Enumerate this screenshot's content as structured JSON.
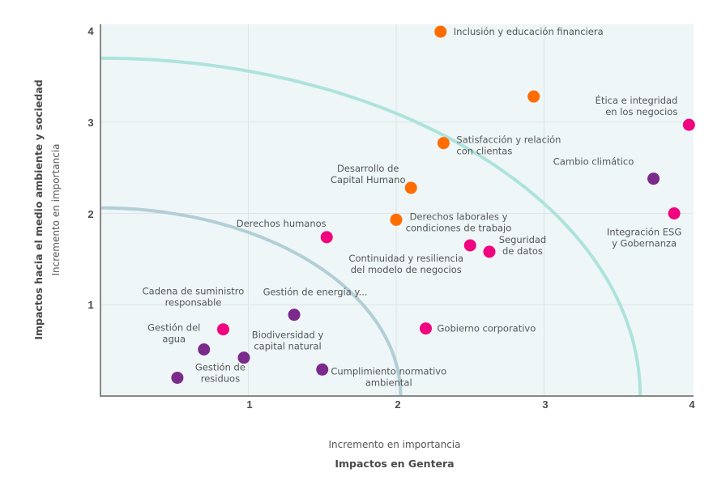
{
  "chart_data": {
    "type": "scatter",
    "title": "",
    "xlabel": "Impactos en Gentera",
    "xlabel_sub": "Incremento en importancia",
    "ylabel": "Impactos hacia el medio ambiente y sociedad",
    "ylabel_sub": "Incremento en importancia",
    "xlim": [
      0,
      4
    ],
    "ylim": [
      0,
      4
    ],
    "xticks": [
      "1",
      "2",
      "3",
      "4"
    ],
    "yticks": [
      "1",
      "2",
      "3",
      "4"
    ],
    "grid": true,
    "legend": "none",
    "colors": {
      "orange": "#ff6d00",
      "pink": "#f0047f",
      "purple": "#7b2a8c",
      "plot_bg": "#eef6f8",
      "grid": "#dde3e6",
      "axis": "#8a8886",
      "outer_curve": "#ade3db",
      "inner_curve": "#b2ced6"
    },
    "threshold_curves": [
      {
        "name": "outer",
        "radius_x": 3.65,
        "radius_y": 3.7,
        "color": "#ade3db"
      },
      {
        "name": "inner",
        "radius_x": 2.03,
        "radius_y": 2.06,
        "color": "#b2ced6"
      }
    ],
    "points": [
      {
        "label": "Inclusión y educación financiera",
        "x": 2.3,
        "y": 3.99,
        "group": "orange"
      },
      {
        "label": "",
        "x": 2.93,
        "y": 3.28,
        "group": "orange"
      },
      {
        "label": "Ética e integridad\nen los negocios",
        "x": 3.98,
        "y": 2.97,
        "group": "pink"
      },
      {
        "label": "Satisfacción y relación\ncon clientas",
        "x": 2.32,
        "y": 2.77,
        "group": "orange"
      },
      {
        "label": "Cambio climático",
        "x": 3.74,
        "y": 2.38,
        "group": "purple"
      },
      {
        "label": "Desarrollo de\nCapital Humano",
        "x": 2.1,
        "y": 2.28,
        "group": "orange"
      },
      {
        "label": "Integración ESG\ny Gobernanza",
        "x": 3.88,
        "y": 2.0,
        "group": "pink"
      },
      {
        "label": "Derechos laborales y\ncondiciones de trabajo",
        "x": 2.0,
        "y": 1.93,
        "group": "orange"
      },
      {
        "label": "Derechos humanos",
        "x": 1.53,
        "y": 1.74,
        "group": "pink"
      },
      {
        "label": "Continuidad y resiliencia\ndel modelo de negocios",
        "x": 2.5,
        "y": 1.65,
        "group": "pink"
      },
      {
        "label": "Seguridad\nde datos",
        "x": 2.63,
        "y": 1.58,
        "group": "pink"
      },
      {
        "label": "Gestión de energía y...",
        "x": 1.31,
        "y": 0.89,
        "group": "purple"
      },
      {
        "label": "Gobierno corporativo",
        "x": 2.2,
        "y": 0.74,
        "group": "pink"
      },
      {
        "label": "Cadena de suministro\nresponsable",
        "x": 0.83,
        "y": 0.73,
        "group": "pink"
      },
      {
        "label": "Gestión del\nagua",
        "x": 0.7,
        "y": 0.51,
        "group": "purple"
      },
      {
        "label": "Biodiversidad y\ncapital natural",
        "x": 0.97,
        "y": 0.42,
        "group": "purple"
      },
      {
        "label": "Cumplimiento normativo\nambiental",
        "x": 1.5,
        "y": 0.29,
        "group": "purple"
      },
      {
        "label": "Gestión de\nresiduos",
        "x": 0.52,
        "y": 0.2,
        "group": "purple"
      }
    ]
  }
}
